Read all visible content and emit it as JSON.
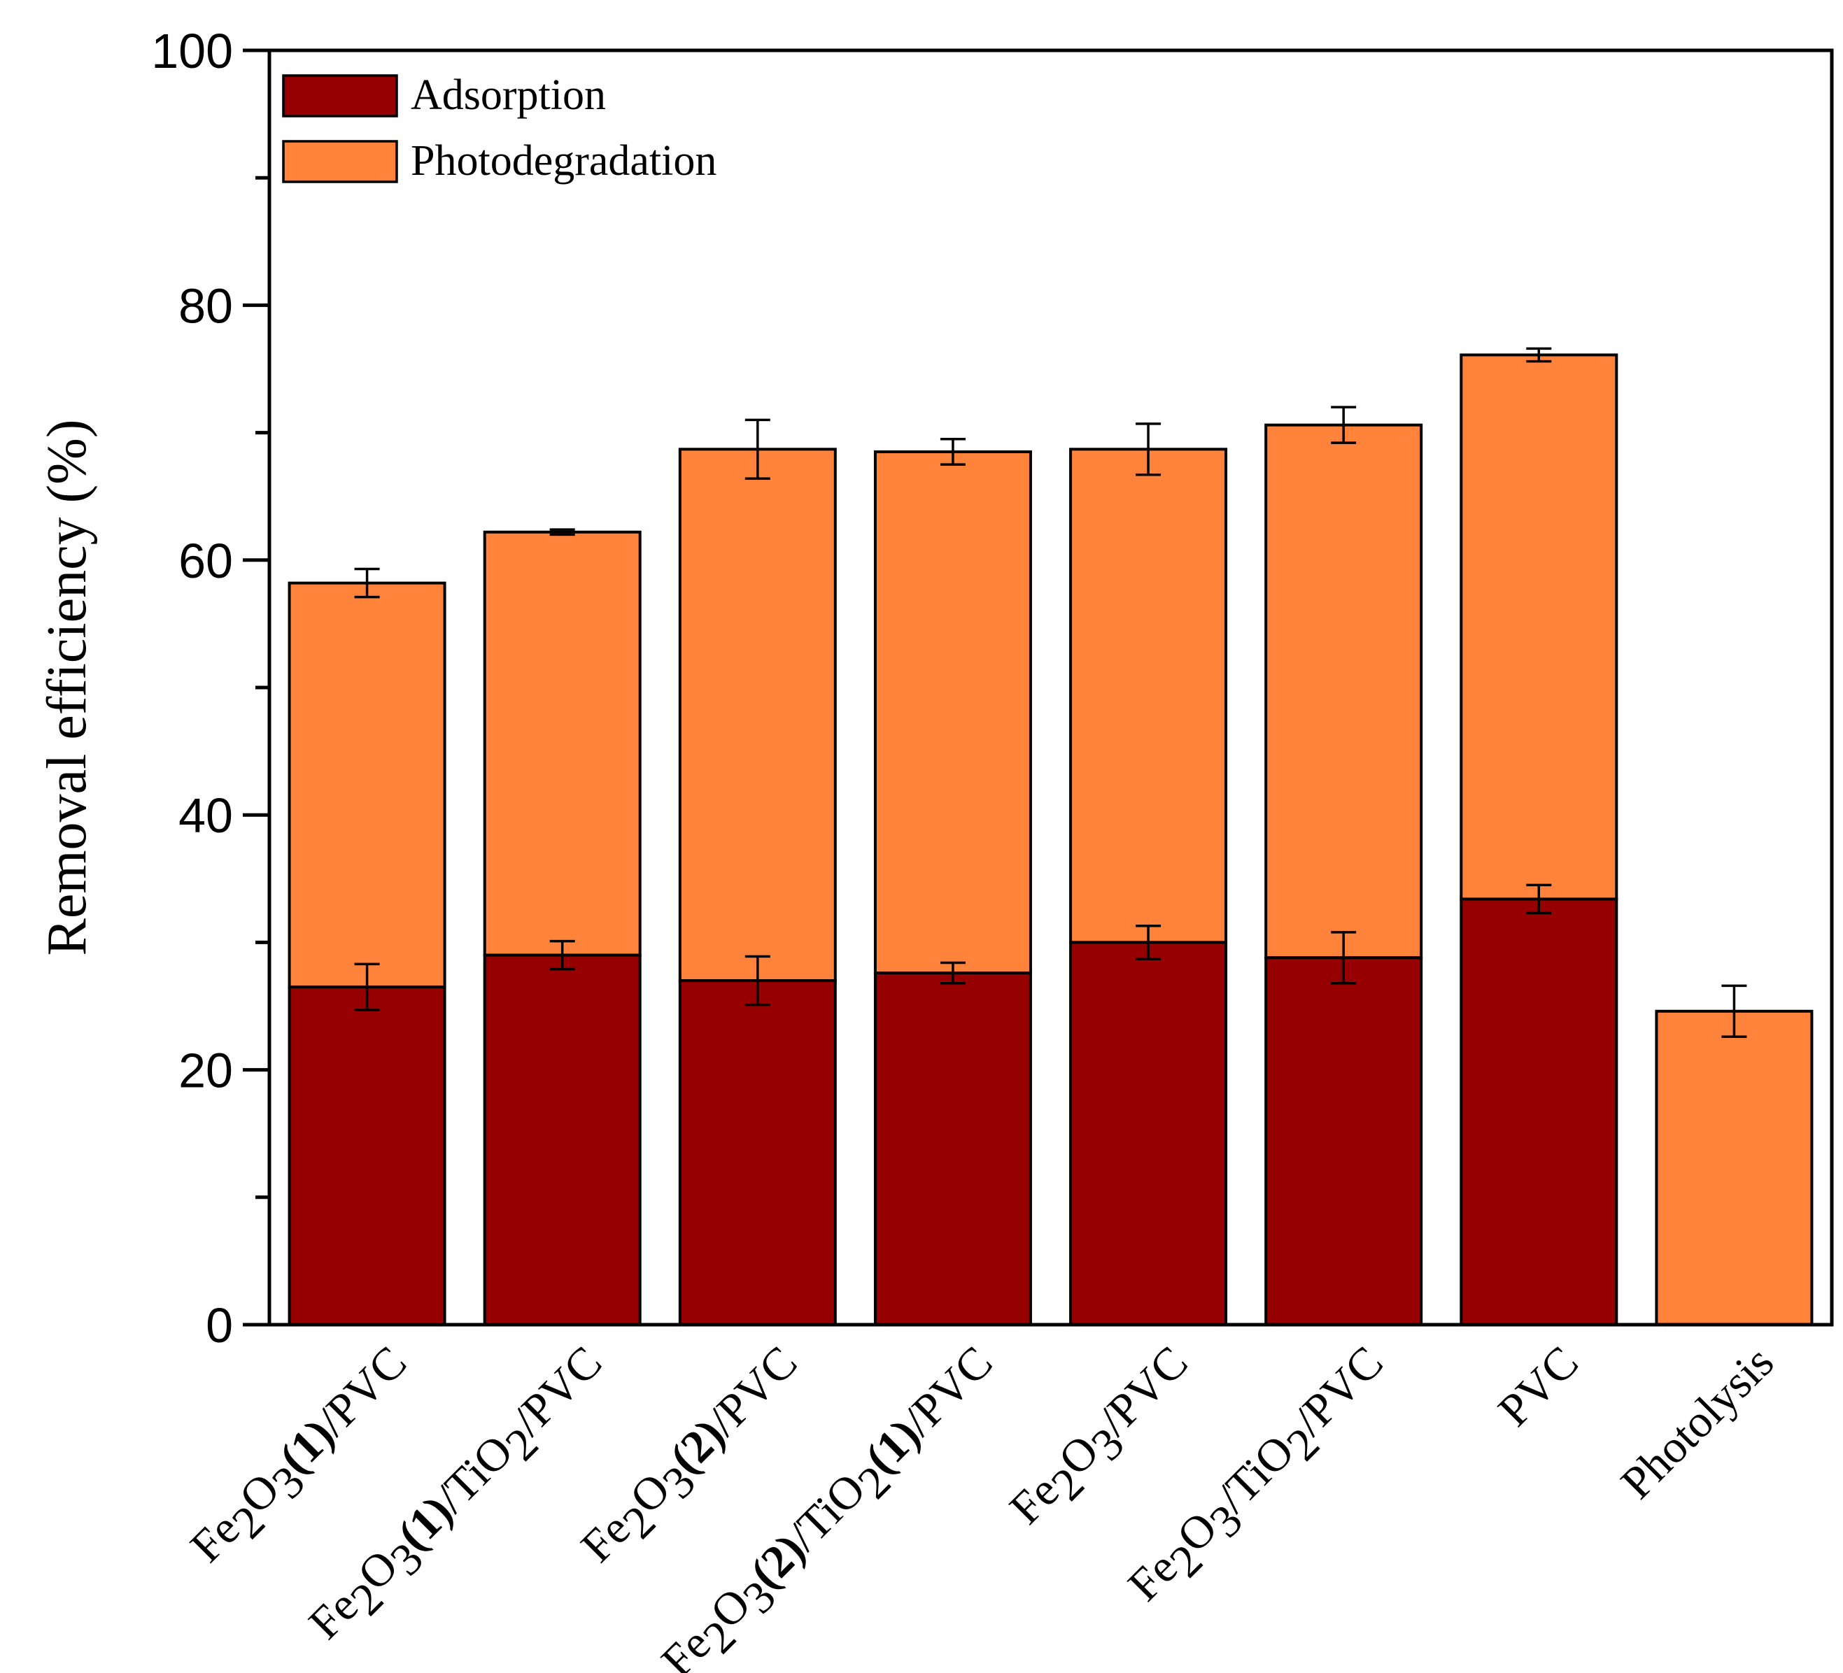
{
  "chart_data": {
    "type": "bar",
    "stacked": true,
    "title": "",
    "xlabel": "",
    "ylabel": "Removal efficiency (%)",
    "ylim": [
      0,
      100
    ],
    "yticks": [
      0,
      20,
      40,
      60,
      80,
      100
    ],
    "y_minor_ticks": [
      10,
      30,
      50,
      70,
      90
    ],
    "categories": [
      "Fe2O3(1)/PVC",
      "Fe2O3(1)/TiO2/PVC",
      "Fe2O3(2)/PVC",
      "Fe2O3(2)/TiO2(1)/PVC",
      "Fe2O3/PVC",
      "Fe2O3/TiO2/PVC",
      "PVC",
      "Photolysis"
    ],
    "category_labels_rich": [
      [
        {
          "t": "Fe"
        },
        {
          "t": "2",
          "sub": true
        },
        {
          "t": "O"
        },
        {
          "t": "3",
          "sub": true
        },
        {
          "t": "(1)",
          "bold": true
        },
        {
          "t": "/PVC"
        }
      ],
      [
        {
          "t": "Fe"
        },
        {
          "t": "2",
          "sub": true
        },
        {
          "t": "O"
        },
        {
          "t": "3",
          "sub": true
        },
        {
          "t": "(1)",
          "bold": true
        },
        {
          "t": "/TiO"
        },
        {
          "t": "2",
          "sub": true
        },
        {
          "t": "/PVC"
        }
      ],
      [
        {
          "t": "Fe"
        },
        {
          "t": "2",
          "sub": true
        },
        {
          "t": "O"
        },
        {
          "t": "3",
          "sub": true
        },
        {
          "t": "(2)",
          "bold": true
        },
        {
          "t": "/PVC"
        }
      ],
      [
        {
          "t": "Fe"
        },
        {
          "t": "2",
          "sub": true
        },
        {
          "t": "O"
        },
        {
          "t": "3",
          "sub": true
        },
        {
          "t": "(2)",
          "bold": true
        },
        {
          "t": "/TiO"
        },
        {
          "t": "2",
          "sub": true
        },
        {
          "t": "(1)",
          "bold": true
        },
        {
          "t": "/PVC"
        }
      ],
      [
        {
          "t": "Fe"
        },
        {
          "t": "2",
          "sub": true
        },
        {
          "t": "O"
        },
        {
          "t": "3",
          "sub": true
        },
        {
          "t": "/PVC"
        }
      ],
      [
        {
          "t": "Fe"
        },
        {
          "t": "2",
          "sub": true
        },
        {
          "t": "O"
        },
        {
          "t": "3",
          "sub": true
        },
        {
          "t": "/TiO"
        },
        {
          "t": "2",
          "sub": true
        },
        {
          "t": "/PVC"
        }
      ],
      [
        {
          "t": "PVC"
        }
      ],
      [
        {
          "t": "Photolysis"
        }
      ]
    ],
    "series": [
      {
        "name": "Adsorption",
        "color": "#960000",
        "values": [
          26.5,
          29.0,
          27.0,
          27.6,
          30.0,
          28.8,
          33.4,
          0
        ],
        "errors": [
          1.8,
          1.1,
          1.9,
          0.8,
          1.3,
          2.0,
          1.1,
          0
        ]
      },
      {
        "name": "Photodegradation",
        "color": "#ff833a",
        "values": [
          31.7,
          33.2,
          41.7,
          40.9,
          38.7,
          41.8,
          42.7,
          24.6
        ],
        "totals": [
          58.2,
          62.2,
          68.7,
          68.5,
          68.7,
          70.6,
          76.1,
          24.6
        ],
        "errors": [
          1.1,
          0.2,
          2.3,
          1.0,
          2.0,
          1.4,
          0.5,
          2.0
        ]
      }
    ],
    "legend": {
      "position": "top-left",
      "entries": [
        "Adsorption",
        "Photodegradation"
      ]
    }
  }
}
